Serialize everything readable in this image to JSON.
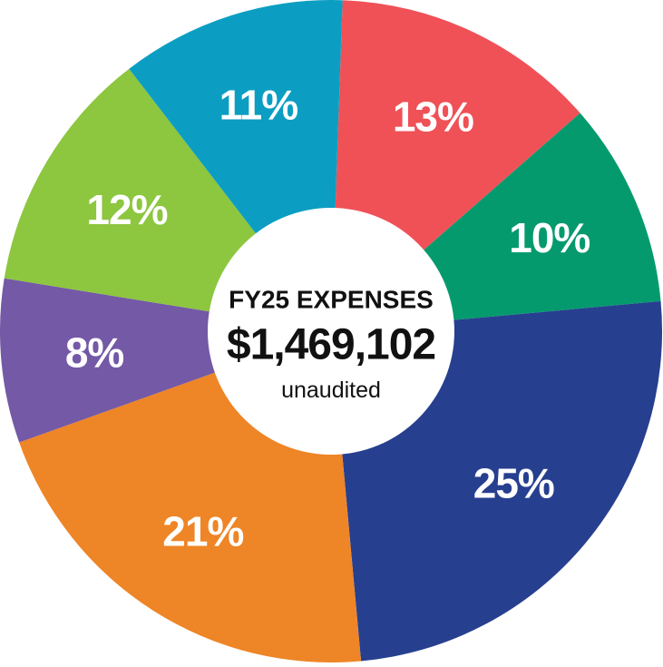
{
  "chart_data": {
    "type": "pie",
    "title": "FY25 EXPENSES",
    "subtitle": "$1,469,102",
    "note": "unaudited",
    "values": [
      13,
      10,
      25,
      21,
      8,
      12,
      11
    ],
    "value_labels": [
      "13%",
      "10%",
      "25%",
      "21%",
      "8%",
      "12%",
      "11%"
    ],
    "colors": [
      "#ef5157",
      "#059a6e",
      "#273f8f",
      "#ee8526",
      "#7459a6",
      "#8dc63f",
      "#0b9ec2"
    ]
  }
}
